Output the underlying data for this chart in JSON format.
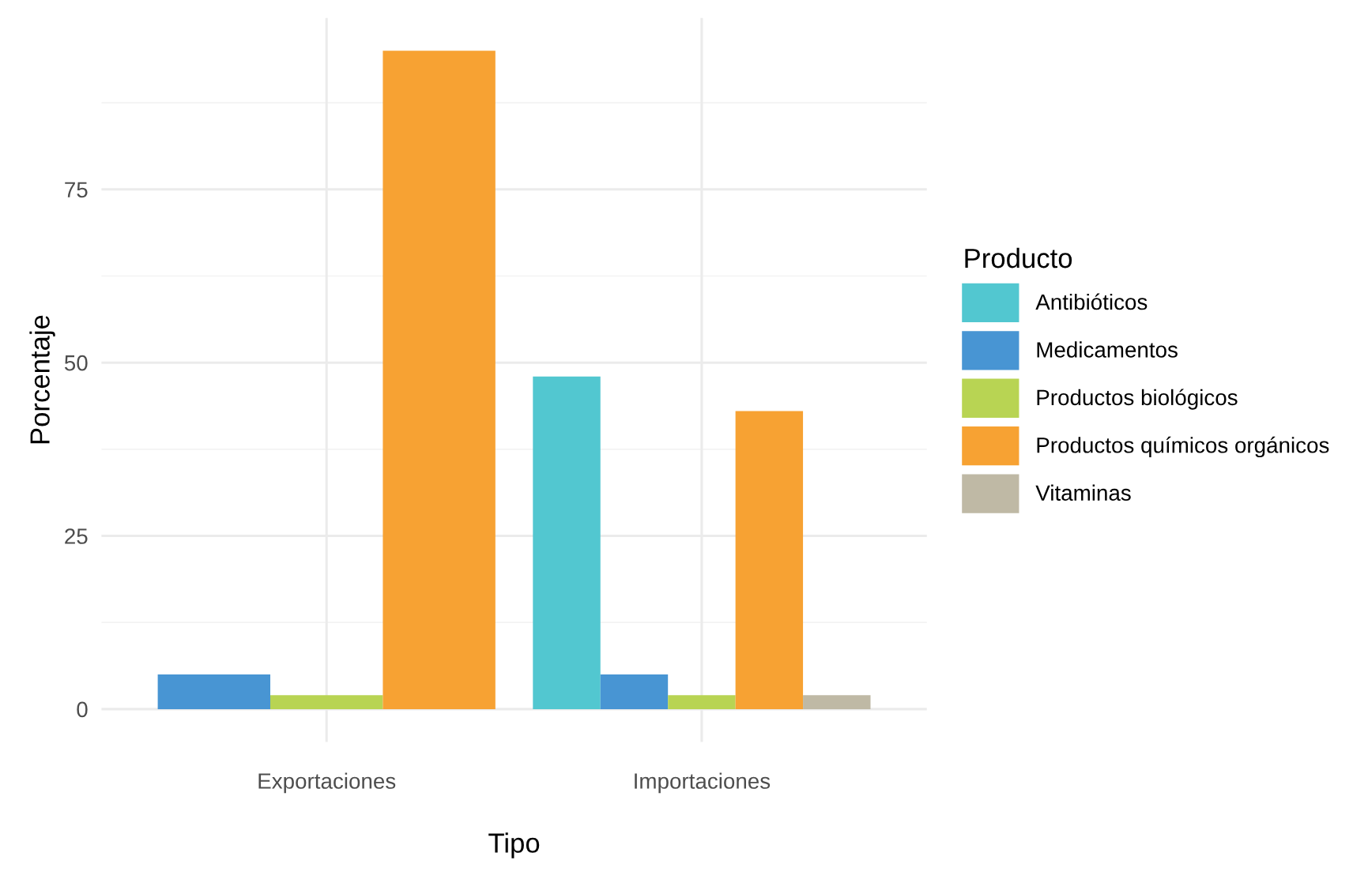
{
  "chart_data": {
    "type": "bar",
    "xlabel": "Tipo",
    "ylabel": "Porcentaje",
    "legend_title": "Producto",
    "categories": [
      "Exportaciones",
      "Importaciones"
    ],
    "series": [
      {
        "name": "Antibióticos",
        "color": "#52c7d0",
        "values": [
          null,
          48
        ]
      },
      {
        "name": "Medicamentos",
        "color": "#4895d3",
        "values": [
          5,
          5
        ]
      },
      {
        "name": "Productos biológicos",
        "color": "#b8d453",
        "values": [
          2,
          2
        ]
      },
      {
        "name": "Productos químicos orgánicos",
        "color": "#f7a233",
        "values": [
          95,
          43
        ]
      },
      {
        "name": "Vitaminas",
        "color": "#bfb9a5",
        "values": [
          null,
          2
        ]
      }
    ],
    "ylim": [
      -4.75,
      99.75
    ],
    "yticks": [
      0,
      25,
      50,
      75
    ],
    "grid": true,
    "legend": "right"
  }
}
